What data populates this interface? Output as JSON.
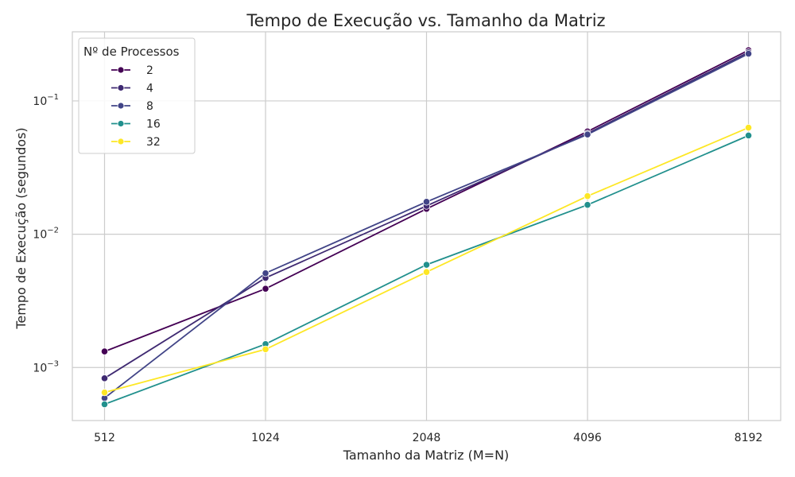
{
  "chart_data": {
    "type": "line",
    "title": "Tempo de Execução vs. Tamanho da Matriz",
    "xlabel": "Tamanho da Matriz (M=N)",
    "ylabel": "Tempo de Execução (segundos)",
    "x_scale": "log2",
    "y_scale": "log10",
    "x": [
      512,
      1024,
      2048,
      4096,
      8192
    ],
    "x_tick_labels": [
      "512",
      "1024",
      "2048",
      "4096",
      "8192"
    ],
    "y_ticks": [
      {
        "value": 0.001,
        "base": "10",
        "exp": "−3"
      },
      {
        "value": 0.01,
        "base": "10",
        "exp": "−2"
      },
      {
        "value": 0.1,
        "base": "10",
        "exp": "−1"
      }
    ],
    "ylim": [
      0.0004,
      0.33
    ],
    "grid": true,
    "legend": {
      "title": "Nº de Processos",
      "position": "top-left"
    },
    "series": [
      {
        "name": "2",
        "color": "#440154",
        "values": [
          0.00132,
          0.0039,
          0.0155,
          0.059,
          0.24
        ]
      },
      {
        "name": "4",
        "color": "#3f2a72",
        "values": [
          0.00083,
          0.0047,
          0.0163,
          0.057,
          0.232
        ]
      },
      {
        "name": "8",
        "color": "#414487",
        "values": [
          0.00059,
          0.0051,
          0.0175,
          0.056,
          0.226
        ]
      },
      {
        "name": "16",
        "color": "#21908d",
        "values": [
          0.00053,
          0.0015,
          0.0059,
          0.0166,
          0.055
        ]
      },
      {
        "name": "32",
        "color": "#fde725",
        "values": [
          0.00065,
          0.00137,
          0.0052,
          0.0193,
          0.063
        ]
      }
    ]
  }
}
